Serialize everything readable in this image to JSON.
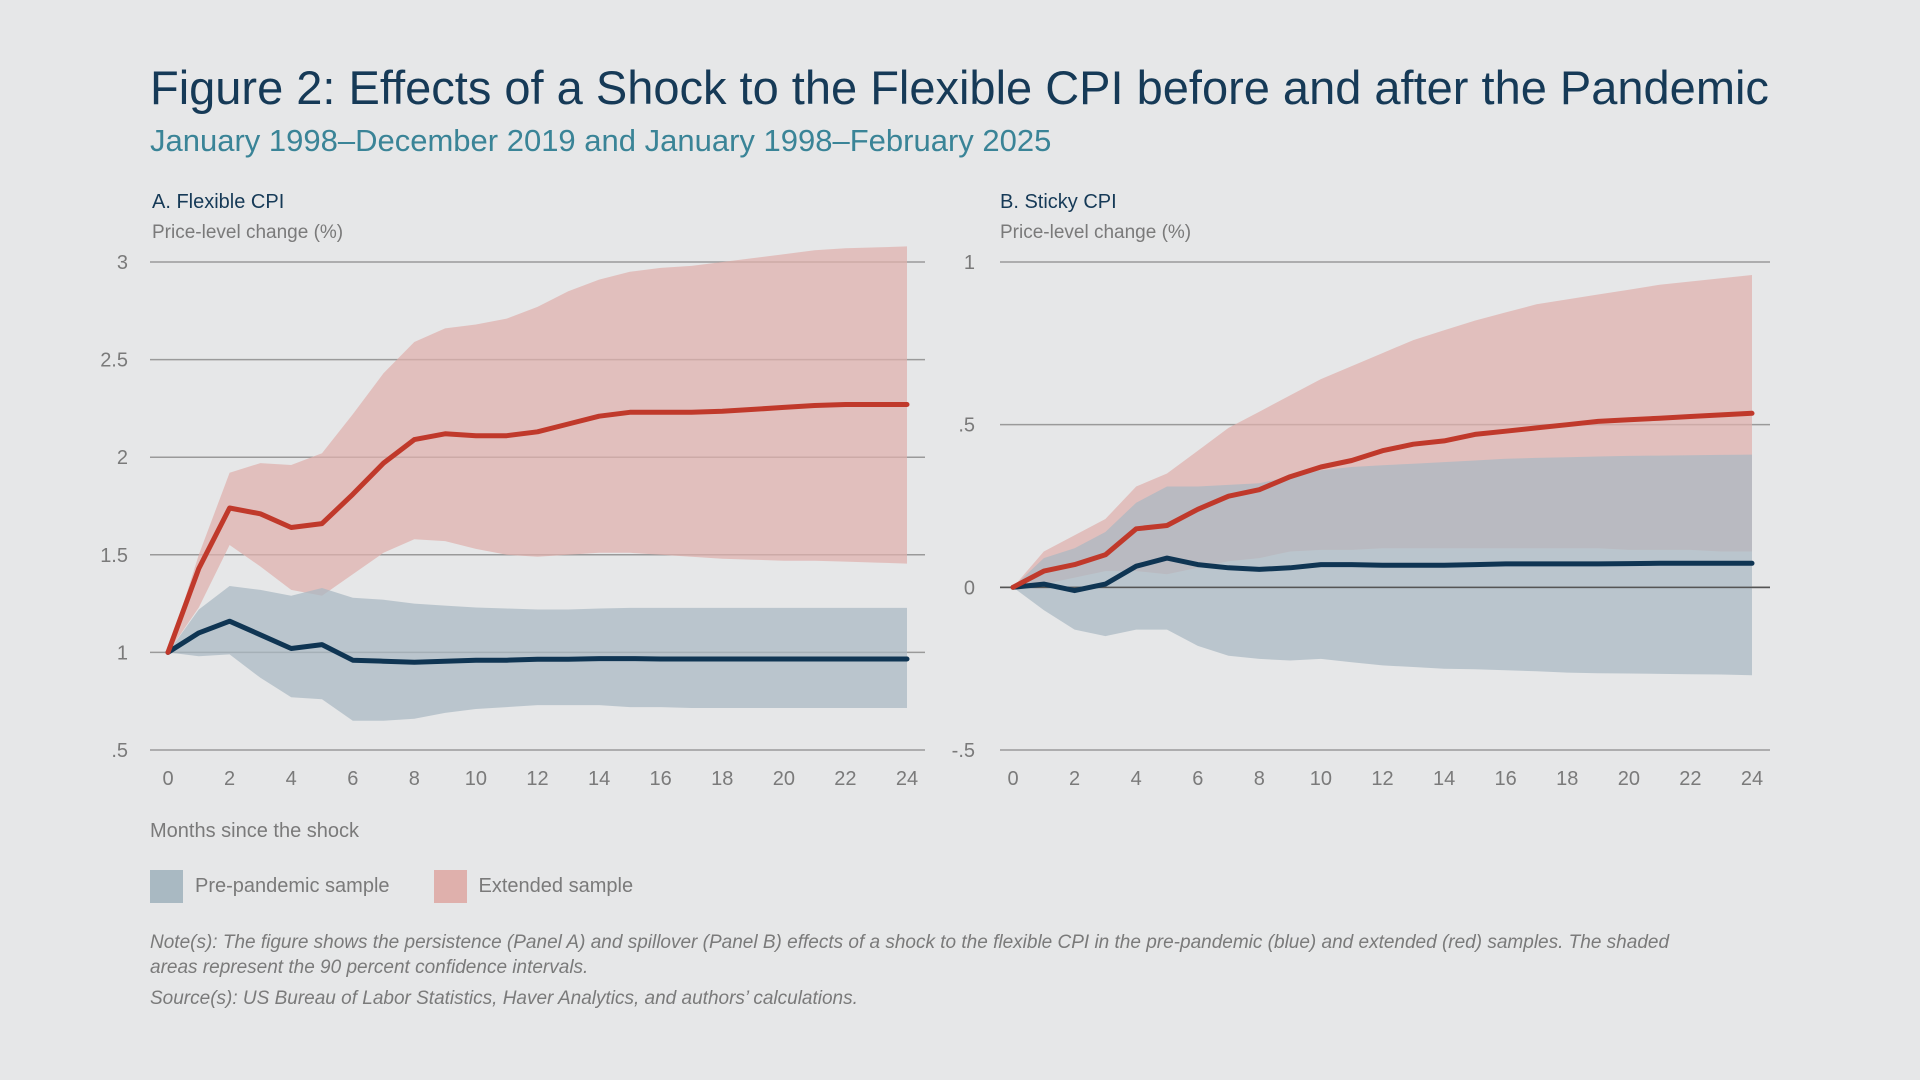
{
  "title": "Figure 2: Effects of a Shock to the Flexible CPI before and after the Pandemic",
  "subtitle": "January 1998–December 2019 and January 1998–February 2025",
  "xaxis_title": "Months since the shock",
  "legend": [
    {
      "label": "Pre-pandemic sample",
      "color": "#a9b9c2"
    },
    {
      "label": "Extended sample",
      "color": "#dfb0ac"
    }
  ],
  "note": "Note(s): The figure shows the persistence (Panel A) and spillover (Panel B) effects of a shock to the flexible CPI in the pre-pandemic (blue) and extended (red) samples. The shaded areas represent the 90 percent confidence intervals.",
  "source": "Source(s): US Bureau of Labor Statistics, Haver Analytics, and authors’ calculations.",
  "colors": {
    "pre_line": "#0f3553",
    "ext_line": "#c0392b",
    "pre_band": "#a9b9c2",
    "ext_band": "#dfb0ac",
    "grid": "#9a9a9a"
  },
  "chart_data": [
    {
      "type": "line",
      "title": "A. Flexible CPI",
      "ylabel": "Price-level change (%)",
      "xlabel": "Months since the shock",
      "ylim": [
        0.5,
        3
      ],
      "yticks": [
        0.5,
        1,
        1.5,
        2,
        2.5,
        3
      ],
      "ytick_labels": [
        ".5",
        "1",
        "1.5",
        "2",
        "2.5",
        "3"
      ],
      "xlim": [
        0,
        24
      ],
      "xticks": [
        0,
        2,
        4,
        6,
        8,
        10,
        12,
        14,
        16,
        18,
        20,
        22,
        24
      ],
      "x": [
        0,
        1,
        2,
        3,
        4,
        5,
        6,
        7,
        8,
        9,
        10,
        11,
        12,
        13,
        14,
        15,
        16,
        17,
        18,
        19,
        20,
        21,
        22,
        23,
        24
      ],
      "series": [
        {
          "name": "Pre-pandemic sample",
          "values": [
            1.0,
            1.1,
            1.16,
            1.09,
            1.02,
            1.04,
            0.96,
            0.955,
            0.95,
            0.955,
            0.96,
            0.96,
            0.965,
            0.965,
            0.968,
            0.968,
            0.966,
            0.966,
            0.966,
            0.966,
            0.966,
            0.966,
            0.966,
            0.966,
            0.966
          ],
          "lower": [
            1.0,
            0.98,
            0.99,
            0.87,
            0.77,
            0.76,
            0.65,
            0.65,
            0.66,
            0.69,
            0.71,
            0.72,
            0.73,
            0.73,
            0.73,
            0.72,
            0.72,
            0.715,
            0.715,
            0.715,
            0.715,
            0.715,
            0.715,
            0.715,
            0.715
          ],
          "upper": [
            1.0,
            1.22,
            1.34,
            1.32,
            1.29,
            1.33,
            1.28,
            1.27,
            1.25,
            1.24,
            1.23,
            1.225,
            1.22,
            1.22,
            1.225,
            1.228,
            1.228,
            1.228,
            1.228,
            1.228,
            1.228,
            1.228,
            1.228,
            1.228,
            1.228
          ]
        },
        {
          "name": "Extended sample",
          "values": [
            1.0,
            1.43,
            1.74,
            1.71,
            1.64,
            1.66,
            1.81,
            1.97,
            2.09,
            2.12,
            2.11,
            2.11,
            2.13,
            2.17,
            2.21,
            2.23,
            2.23,
            2.23,
            2.235,
            2.245,
            2.255,
            2.265,
            2.27,
            2.27,
            2.27
          ],
          "lower": [
            1.0,
            1.23,
            1.55,
            1.44,
            1.32,
            1.29,
            1.4,
            1.51,
            1.58,
            1.57,
            1.53,
            1.5,
            1.49,
            1.5,
            1.51,
            1.51,
            1.5,
            1.49,
            1.48,
            1.475,
            1.47,
            1.47,
            1.465,
            1.46,
            1.455
          ],
          "upper": [
            1.0,
            1.5,
            1.92,
            1.97,
            1.96,
            2.02,
            2.22,
            2.43,
            2.59,
            2.66,
            2.68,
            2.71,
            2.77,
            2.85,
            2.91,
            2.95,
            2.97,
            2.98,
            3.0,
            3.02,
            3.04,
            3.06,
            3.07,
            3.075,
            3.08
          ]
        }
      ]
    },
    {
      "type": "line",
      "title": "B. Sticky CPI",
      "ylabel": "Price-level change (%)",
      "xlabel": "Months since the shock",
      "ylim": [
        -0.5,
        1
      ],
      "yticks": [
        -0.5,
        0,
        0.5,
        1
      ],
      "ytick_labels": [
        "-.5",
        "0",
        ".5",
        "1"
      ],
      "xlim": [
        0,
        24
      ],
      "xticks": [
        0,
        2,
        4,
        6,
        8,
        10,
        12,
        14,
        16,
        18,
        20,
        22,
        24
      ],
      "x": [
        0,
        1,
        2,
        3,
        4,
        5,
        6,
        7,
        8,
        9,
        10,
        11,
        12,
        13,
        14,
        15,
        16,
        17,
        18,
        19,
        20,
        21,
        22,
        23,
        24
      ],
      "series": [
        {
          "name": "Pre-pandemic sample",
          "values": [
            0.0,
            0.01,
            -0.01,
            0.01,
            0.065,
            0.09,
            0.07,
            0.06,
            0.055,
            0.06,
            0.07,
            0.07,
            0.068,
            0.068,
            0.068,
            0.07,
            0.072,
            0.072,
            0.072,
            0.072,
            0.073,
            0.074,
            0.074,
            0.074,
            0.074
          ],
          "lower": [
            0.0,
            -0.07,
            -0.13,
            -0.15,
            -0.13,
            -0.13,
            -0.18,
            -0.21,
            -0.22,
            -0.225,
            -0.22,
            -0.23,
            -0.24,
            -0.245,
            -0.25,
            -0.252,
            -0.255,
            -0.258,
            -0.262,
            -0.264,
            -0.265,
            -0.266,
            -0.267,
            -0.268,
            -0.27
          ],
          "upper": [
            0.0,
            0.09,
            0.12,
            0.17,
            0.26,
            0.31,
            0.31,
            0.315,
            0.32,
            0.34,
            0.36,
            0.37,
            0.375,
            0.38,
            0.385,
            0.39,
            0.395,
            0.398,
            0.4,
            0.402,
            0.404,
            0.405,
            0.406,
            0.407,
            0.408
          ]
        },
        {
          "name": "Extended sample",
          "values": [
            0.0,
            0.05,
            0.07,
            0.1,
            0.18,
            0.19,
            0.24,
            0.28,
            0.3,
            0.34,
            0.37,
            0.39,
            0.42,
            0.44,
            0.45,
            0.47,
            0.48,
            0.49,
            0.5,
            0.51,
            0.515,
            0.52,
            0.525,
            0.53,
            0.535
          ],
          "lower": [
            0.0,
            0.01,
            0.03,
            0.05,
            0.05,
            0.04,
            0.06,
            0.08,
            0.09,
            0.11,
            0.115,
            0.115,
            0.12,
            0.12,
            0.12,
            0.12,
            0.12,
            0.12,
            0.12,
            0.12,
            0.115,
            0.115,
            0.115,
            0.11,
            0.11
          ],
          "upper": [
            0.0,
            0.11,
            0.16,
            0.21,
            0.31,
            0.35,
            0.42,
            0.49,
            0.54,
            0.59,
            0.64,
            0.68,
            0.72,
            0.76,
            0.79,
            0.82,
            0.845,
            0.87,
            0.885,
            0.9,
            0.915,
            0.93,
            0.94,
            0.95,
            0.96
          ]
        }
      ]
    }
  ]
}
